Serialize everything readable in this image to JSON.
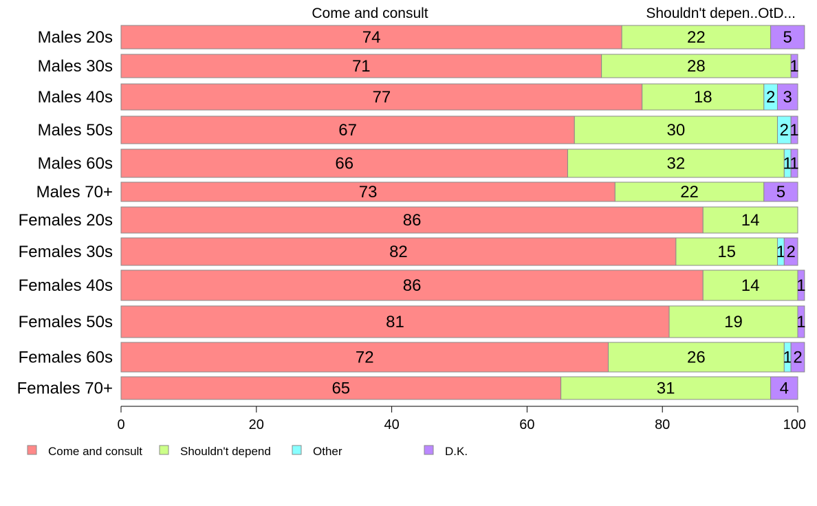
{
  "chart_data": {
    "type": "bar",
    "orientation": "horizontal",
    "stacked": true,
    "categories": [
      "Males 20s",
      "Males 30s",
      "Males 40s",
      "Males 50s",
      "Males 60s",
      "Males 70+",
      "Females 20s",
      "Females 30s",
      "Females 40s",
      "Females 50s",
      "Females 60s",
      "Females 70+"
    ],
    "series": [
      {
        "name": "Come and consult",
        "color": "#FF8888",
        "values": [
          74,
          71,
          77,
          67,
          66,
          73,
          86,
          82,
          86,
          81,
          72,
          65
        ]
      },
      {
        "name": "Shouldn't depend",
        "color": "#CCFF88",
        "values": [
          22,
          28,
          18,
          30,
          32,
          22,
          14,
          15,
          14,
          19,
          26,
          31
        ]
      },
      {
        "name": "Other",
        "color": "#88FFFF",
        "values": [
          0,
          0,
          2,
          2,
          1,
          0,
          0,
          1,
          0,
          0,
          1,
          0
        ]
      },
      {
        "name": "D.K.",
        "color": "#BB88FF",
        "values": [
          5,
          1,
          3,
          1,
          1,
          5,
          0,
          2,
          1,
          1,
          2,
          4
        ]
      }
    ],
    "top_labels": [
      "Come and consult",
      "Shouldn't depen..OtD..."
    ],
    "xlim": [
      0,
      100
    ],
    "xticks": [
      "0",
      "20",
      "40",
      "60",
      "80",
      "100"
    ],
    "grid": false,
    "legend_position": "bottom-left"
  }
}
